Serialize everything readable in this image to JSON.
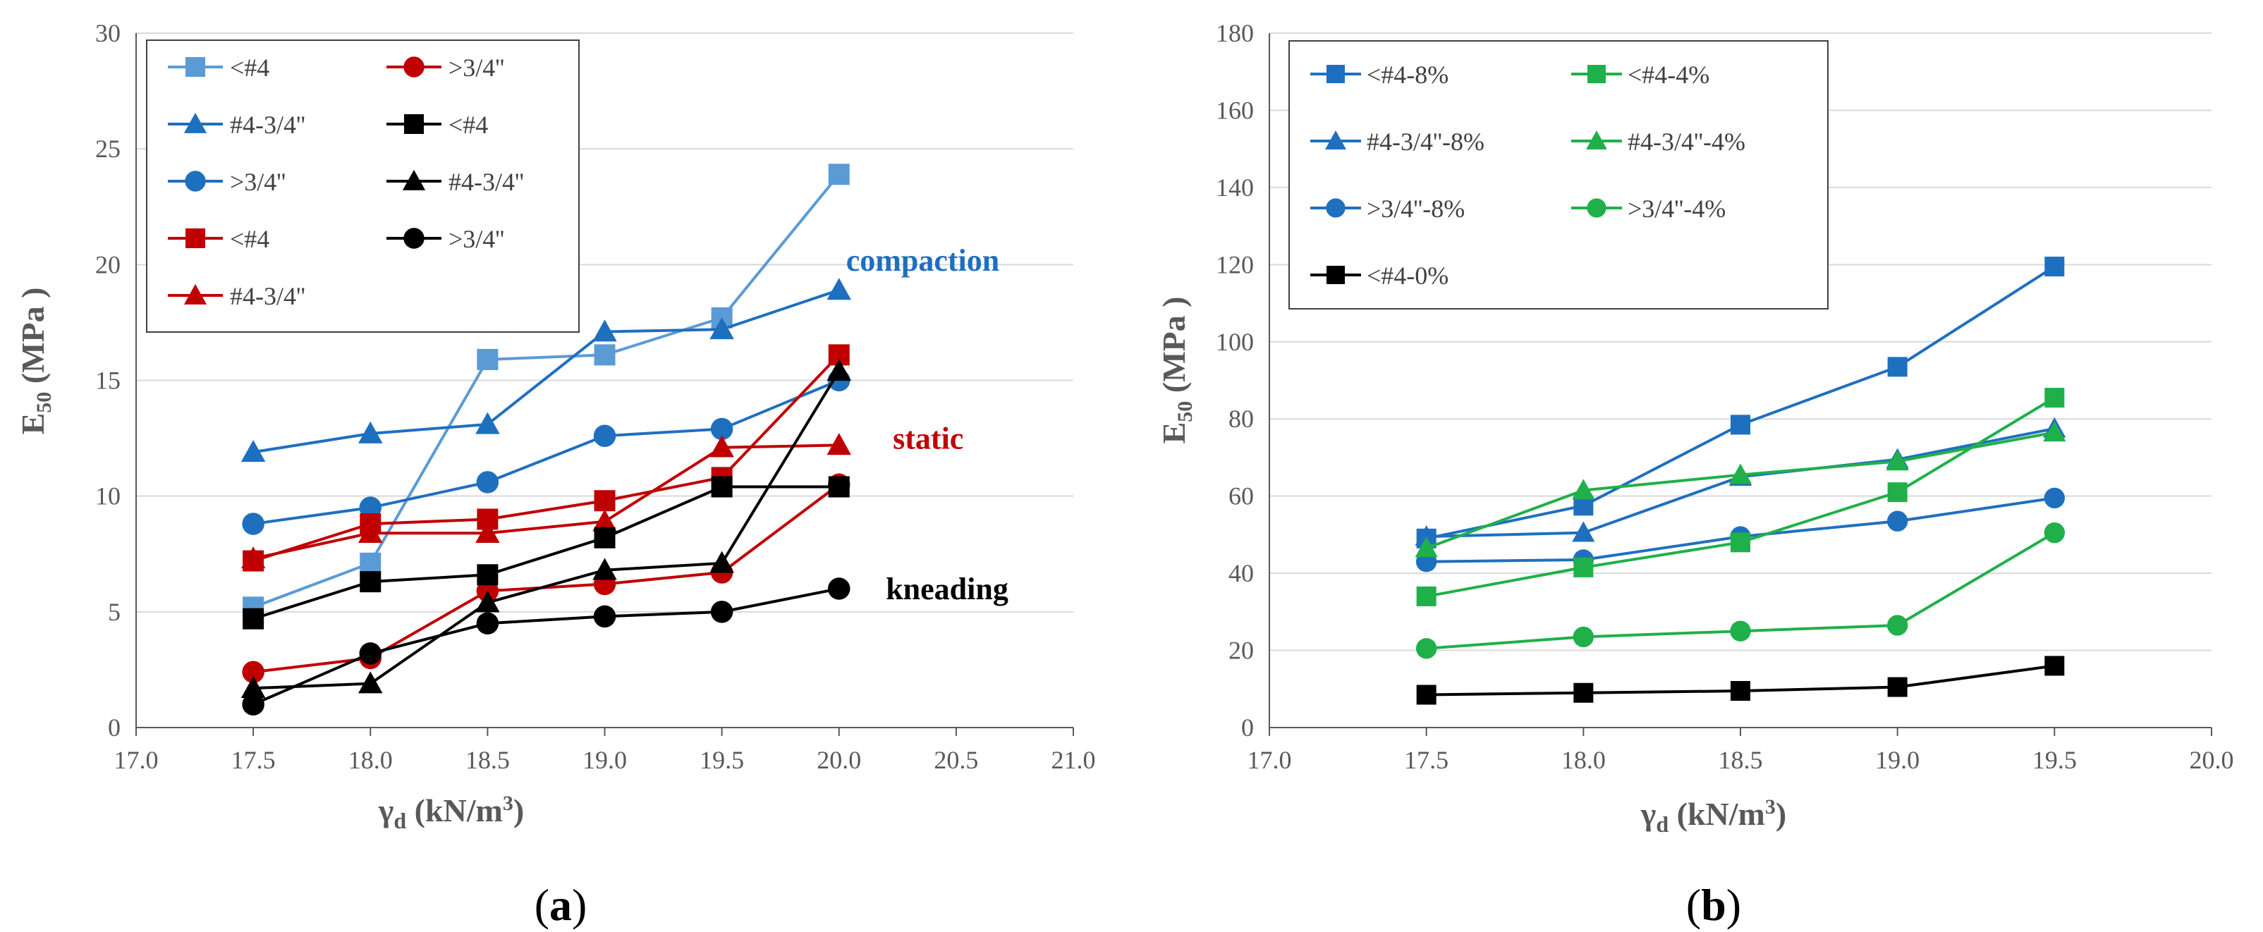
{
  "colors": {
    "lightblue": "#5B9BD5",
    "blue": "#1F6FBF",
    "red": "#C00000",
    "black": "#000000",
    "green": "#1FB04A",
    "grid": "#D9D9D9",
    "axis": "#595959"
  },
  "chart_data": [
    {
      "type": "line",
      "panel_label": "a",
      "xlabel": "γd (kN/m3)",
      "ylabel": "E50 (MPa )",
      "xlim": [
        17.0,
        21.0
      ],
      "ylim": [
        0,
        30
      ],
      "xticks": [
        "17.0",
        "17.5",
        "18.0",
        "18.5",
        "19.0",
        "19.5",
        "20.0",
        "20.5",
        "21.0"
      ],
      "yticks": [
        "0",
        "5",
        "10",
        "15",
        "20",
        "25",
        "30"
      ],
      "series": [
        {
          "name": "<#4",
          "color": "#5B9BD5",
          "marker": "square",
          "x": [
            17.5,
            18.0,
            18.5,
            19.0,
            19.5,
            20.0
          ],
          "y": [
            5.2,
            7.1,
            15.9,
            16.1,
            17.7,
            23.9
          ]
        },
        {
          "name": "#4-3/4''",
          "color": "#1F6FBF",
          "marker": "triangle",
          "x": [
            17.5,
            18.0,
            18.5,
            19.0,
            19.5,
            20.0
          ],
          "y": [
            11.9,
            12.7,
            13.1,
            17.1,
            17.2,
            18.9
          ]
        },
        {
          "name": ">3/4''",
          "color": "#1F6FBF",
          "marker": "circle",
          "x": [
            17.5,
            18.0,
            18.5,
            19.0,
            19.5,
            20.0
          ],
          "y": [
            8.8,
            9.5,
            10.6,
            12.6,
            12.9,
            15.0
          ]
        },
        {
          "name": "<#4",
          "color": "#C00000",
          "marker": "square",
          "x": [
            17.5,
            18.0,
            18.5,
            19.0,
            19.5,
            20.0
          ],
          "y": [
            7.2,
            8.8,
            9.0,
            9.8,
            10.8,
            16.1
          ]
        },
        {
          "name": "#4-3/4''",
          "color": "#C00000",
          "marker": "triangle",
          "x": [
            17.5,
            18.0,
            18.5,
            19.0,
            19.5,
            20.0
          ],
          "y": [
            7.3,
            8.4,
            8.4,
            8.9,
            12.1,
            12.2
          ]
        },
        {
          "name": ">3/4''",
          "color": "#C00000",
          "marker": "circle",
          "x": [
            17.5,
            18.0,
            18.5,
            19.0,
            19.5,
            20.0
          ],
          "y": [
            2.4,
            3.0,
            5.9,
            6.2,
            6.7,
            10.5
          ]
        },
        {
          "name": "<#4",
          "color": "#000000",
          "marker": "square",
          "x": [
            17.5,
            18.0,
            18.5,
            19.0,
            19.5,
            20.0
          ],
          "y": [
            4.7,
            6.3,
            6.6,
            8.2,
            10.4,
            10.4
          ]
        },
        {
          "name": "#4-3/4''",
          "color": "#000000",
          "marker": "triangle",
          "x": [
            17.5,
            18.0,
            18.5,
            19.0,
            19.5,
            20.0
          ],
          "y": [
            1.7,
            1.9,
            5.4,
            6.8,
            7.1,
            15.4
          ]
        },
        {
          "name": ">3/4''",
          "color": "#000000",
          "marker": "circle",
          "x": [
            17.5,
            18.0,
            18.5,
            19.0,
            19.5,
            20.0
          ],
          "y": [
            1.0,
            3.2,
            4.5,
            4.8,
            5.0,
            6.0
          ]
        }
      ],
      "annotations": [
        {
          "text": "compaction",
          "color": "#1F6FBF",
          "x": 20.03,
          "y": 20.2
        },
        {
          "text": "static",
          "color": "#C00000",
          "x": 20.23,
          "y": 12.5
        },
        {
          "text": "kneading",
          "color": "#000000",
          "x": 20.2,
          "y": 6.0
        }
      ]
    },
    {
      "type": "line",
      "panel_label": "b",
      "xlabel": "γd (kN/m3)",
      "ylabel": "E50 (MPa )",
      "xlim": [
        17.0,
        20.0
      ],
      "ylim": [
        0,
        180
      ],
      "xticks": [
        "17.0",
        "17.5",
        "18.0",
        "18.5",
        "19.0",
        "19.5",
        "20.0"
      ],
      "yticks": [
        "0",
        "20",
        "40",
        "60",
        "80",
        "100",
        "120",
        "140",
        "160",
        "180"
      ],
      "series": [
        {
          "name": "<#4-8%",
          "color": "#1F6FBF",
          "marker": "square",
          "x": [
            17.5,
            18.0,
            18.5,
            19.0,
            19.5
          ],
          "y": [
            49,
            57.5,
            78.5,
            93.5,
            119.5
          ]
        },
        {
          "name": "#4-3/4''-8%",
          "color": "#1F6FBF",
          "marker": "triangle",
          "x": [
            17.5,
            18.0,
            18.5,
            19.0,
            19.5
          ],
          "y": [
            49.5,
            50.5,
            65,
            69.5,
            77.5
          ]
        },
        {
          "name": ">3/4''-8%",
          "color": "#1F6FBF",
          "marker": "circle",
          "x": [
            17.5,
            18.0,
            18.5,
            19.0,
            19.5
          ],
          "y": [
            43,
            43.5,
            49.5,
            53.5,
            59.5
          ]
        },
        {
          "name": "<#4-4%",
          "color": "#1FB04A",
          "marker": "square",
          "x": [
            17.5,
            18.0,
            18.5,
            19.0,
            19.5
          ],
          "y": [
            34,
            41.5,
            48,
            61,
            85.5
          ]
        },
        {
          "name": "#4-3/4''-4%",
          "color": "#1FB04A",
          "marker": "triangle",
          "x": [
            17.5,
            18.0,
            18.5,
            19.0,
            19.5
          ],
          "y": [
            46.5,
            61.5,
            65.5,
            69,
            76.5
          ]
        },
        {
          "name": ">3/4''-4%",
          "color": "#1FB04A",
          "marker": "circle",
          "x": [
            17.5,
            18.0,
            18.5,
            19.0,
            19.5
          ],
          "y": [
            20.5,
            23.5,
            25,
            26.5,
            50.5
          ]
        },
        {
          "name": "<#4-0%",
          "color": "#000000",
          "marker": "square",
          "x": [
            17.5,
            18.0,
            18.5,
            19.0,
            19.5
          ],
          "y": [
            8.5,
            9,
            9.5,
            10.5,
            16
          ]
        }
      ]
    }
  ]
}
